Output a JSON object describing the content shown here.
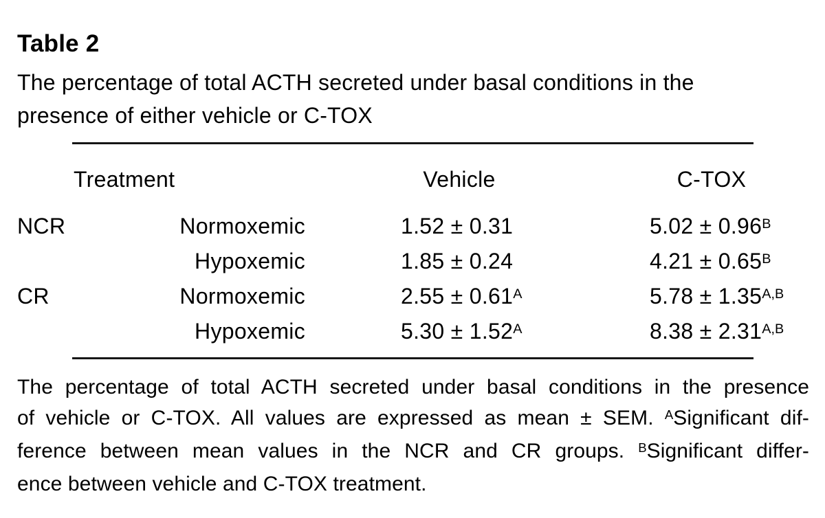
{
  "title": "Table 2",
  "caption": {
    "line1": "The percentage of total ACTH secreted under basal conditions in the",
    "line2": "presence of either vehicle or C-TOX"
  },
  "table": {
    "headers": {
      "treatment": "Treatment",
      "vehicle": "Vehicle",
      "ctox": "C-TOX"
    },
    "rows": [
      {
        "group": "NCR",
        "condition": "Normoxemic",
        "vehicle_value": "1.52 ± 0.31",
        "vehicle_sup": "",
        "ctox_value": "5.02 ± 0.96",
        "ctox_sup": "B"
      },
      {
        "group": "",
        "condition": "Hypoxemic",
        "vehicle_value": "1.85 ± 0.24",
        "vehicle_sup": "",
        "ctox_value": "4.21 ± 0.65",
        "ctox_sup": "B"
      },
      {
        "group": "CR",
        "condition": "Normoxemic",
        "vehicle_value": "2.55 ± 0.61",
        "vehicle_sup": "A",
        "ctox_value": "5.78 ± 1.35",
        "ctox_sup": "A,B"
      },
      {
        "group": "",
        "condition": "Hypoxemic",
        "vehicle_value": "5.30 ± 1.52",
        "vehicle_sup": "A",
        "ctox_value": "8.38 ± 2.31",
        "ctox_sup": "A,B"
      }
    ]
  },
  "footnote": {
    "line1": "The percentage of total ACTH secreted under basal conditions in the presence",
    "line2_pre": "of vehicle or C-TOX. All values are expressed as mean ± SEM.",
    "line2_sup": "A",
    "line2_post": "Significant dif-",
    "line3_pre": "ference between mean values in the NCR and CR groups.",
    "line3_sup": "B",
    "line3_post": "Significant differ-",
    "line4": "ence between vehicle and C-TOX treatment."
  },
  "colors": {
    "text": "#000000",
    "background": "#ffffff",
    "rule": "#161616"
  }
}
